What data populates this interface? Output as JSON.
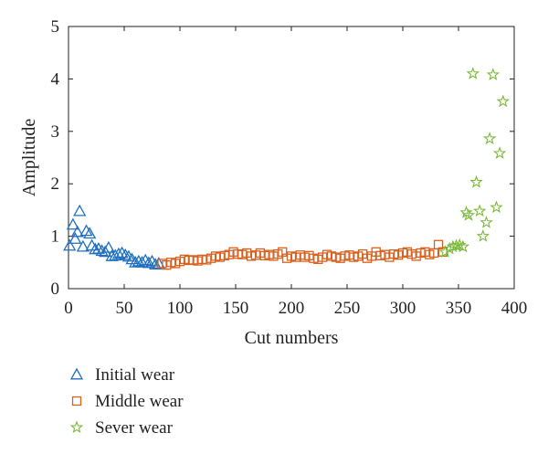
{
  "chart_data": {
    "type": "scatter",
    "xlabel": "Cut numbers",
    "ylabel": "Amplitude",
    "xlim": [
      0,
      400
    ],
    "ylim": [
      0,
      5
    ],
    "xticks": [
      0,
      50,
      100,
      150,
      200,
      250,
      300,
      350,
      400
    ],
    "yticks": [
      0,
      1,
      2,
      3,
      4,
      5
    ],
    "grid": false,
    "legend_position": "bottom-left",
    "series": [
      {
        "name": "Initial wear",
        "marker": "triangle",
        "color": "#1f6fc1",
        "points": [
          [
            1,
            0.82
          ],
          [
            4,
            1.22
          ],
          [
            6,
            0.95
          ],
          [
            8,
            1.08
          ],
          [
            10,
            1.48
          ],
          [
            13,
            0.8
          ],
          [
            16,
            1.1
          ],
          [
            19,
            1.05
          ],
          [
            21,
            0.82
          ],
          [
            24,
            0.75
          ],
          [
            27,
            0.76
          ],
          [
            30,
            0.72
          ],
          [
            33,
            0.7
          ],
          [
            36,
            0.78
          ],
          [
            39,
            0.62
          ],
          [
            42,
            0.63
          ],
          [
            45,
            0.66
          ],
          [
            48,
            0.68
          ],
          [
            51,
            0.64
          ],
          [
            54,
            0.61
          ],
          [
            57,
            0.56
          ],
          [
            60,
            0.5
          ],
          [
            63,
            0.52
          ],
          [
            66,
            0.5
          ],
          [
            69,
            0.54
          ],
          [
            72,
            0.49
          ],
          [
            75,
            0.52
          ],
          [
            78,
            0.46
          ],
          [
            81,
            0.48
          ]
        ]
      },
      {
        "name": "Middle wear",
        "marker": "square",
        "color": "#d9611e",
        "points": [
          [
            84,
            0.48
          ],
          [
            88,
            0.45
          ],
          [
            92,
            0.5
          ],
          [
            96,
            0.48
          ],
          [
            100,
            0.52
          ],
          [
            104,
            0.56
          ],
          [
            108,
            0.54
          ],
          [
            112,
            0.55
          ],
          [
            116,
            0.53
          ],
          [
            120,
            0.56
          ],
          [
            124,
            0.55
          ],
          [
            128,
            0.58
          ],
          [
            132,
            0.62
          ],
          [
            136,
            0.6
          ],
          [
            140,
            0.63
          ],
          [
            144,
            0.65
          ],
          [
            148,
            0.7
          ],
          [
            152,
            0.66
          ],
          [
            156,
            0.65
          ],
          [
            160,
            0.68
          ],
          [
            164,
            0.62
          ],
          [
            168,
            0.64
          ],
          [
            172,
            0.68
          ],
          [
            176,
            0.63
          ],
          [
            180,
            0.65
          ],
          [
            184,
            0.62
          ],
          [
            188,
            0.66
          ],
          [
            192,
            0.7
          ],
          [
            196,
            0.58
          ],
          [
            200,
            0.62
          ],
          [
            204,
            0.6
          ],
          [
            208,
            0.64
          ],
          [
            212,
            0.6
          ],
          [
            216,
            0.63
          ],
          [
            220,
            0.58
          ],
          [
            224,
            0.56
          ],
          [
            228,
            0.6
          ],
          [
            232,
            0.65
          ],
          [
            236,
            0.62
          ],
          [
            240,
            0.6
          ],
          [
            244,
            0.58
          ],
          [
            248,
            0.62
          ],
          [
            252,
            0.64
          ],
          [
            256,
            0.6
          ],
          [
            260,
            0.62
          ],
          [
            264,
            0.66
          ],
          [
            268,
            0.58
          ],
          [
            272,
            0.62
          ],
          [
            276,
            0.7
          ],
          [
            280,
            0.63
          ],
          [
            284,
            0.65
          ],
          [
            288,
            0.6
          ],
          [
            292,
            0.66
          ],
          [
            296,
            0.64
          ],
          [
            300,
            0.68
          ],
          [
            304,
            0.7
          ],
          [
            308,
            0.66
          ],
          [
            312,
            0.62
          ],
          [
            316,
            0.68
          ],
          [
            320,
            0.7
          ],
          [
            324,
            0.65
          ],
          [
            328,
            0.68
          ],
          [
            332,
            0.84
          ],
          [
            336,
            0.7
          ]
        ]
      },
      {
        "name": "Sever wear",
        "marker": "star",
        "color": "#7ab93a",
        "points": [
          [
            338,
            0.7
          ],
          [
            342,
            0.76
          ],
          [
            345,
            0.8
          ],
          [
            348,
            0.82
          ],
          [
            351,
            0.83
          ],
          [
            354,
            0.8
          ],
          [
            357,
            1.45
          ],
          [
            359,
            1.4
          ],
          [
            363,
            4.1
          ],
          [
            366,
            2.03
          ],
          [
            369,
            1.48
          ],
          [
            372,
            1.0
          ],
          [
            375,
            1.26
          ],
          [
            378,
            2.86
          ],
          [
            381,
            4.08
          ],
          [
            384,
            1.55
          ],
          [
            387,
            2.58
          ],
          [
            390,
            3.57
          ]
        ]
      }
    ]
  }
}
